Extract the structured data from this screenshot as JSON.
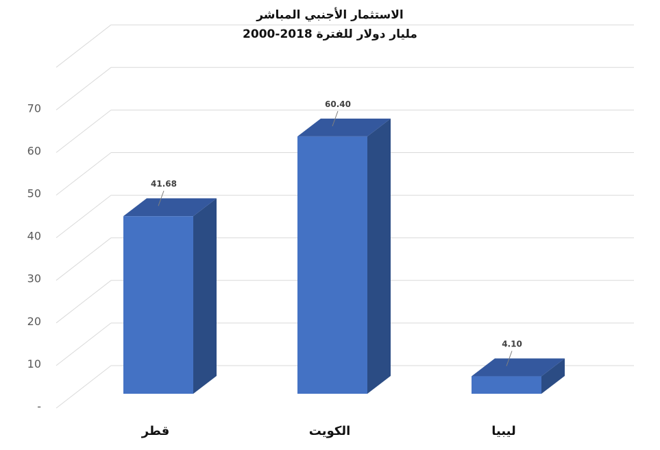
{
  "chart_data": {
    "type": "bar",
    "title": "الاستثمار الأجنبي المباشر",
    "subtitle": "مليار دولار للفترة 2018-2000",
    "categories": [
      "قطر",
      "الكويت",
      "ليبيا"
    ],
    "values": [
      41.68,
      60.4,
      4.1
    ],
    "value_labels": [
      "41.68",
      "60.40",
      "4.10"
    ],
    "yticks": [
      "-",
      "10",
      "20",
      "30",
      "40",
      "50",
      "60",
      "70"
    ],
    "ylim": [
      0,
      80
    ],
    "grid": true,
    "style": "3d-column",
    "colors": {
      "front": "#4472C4",
      "side": "#2B4C84",
      "top": "#34589E",
      "grid": "#D9D9D9"
    }
  }
}
